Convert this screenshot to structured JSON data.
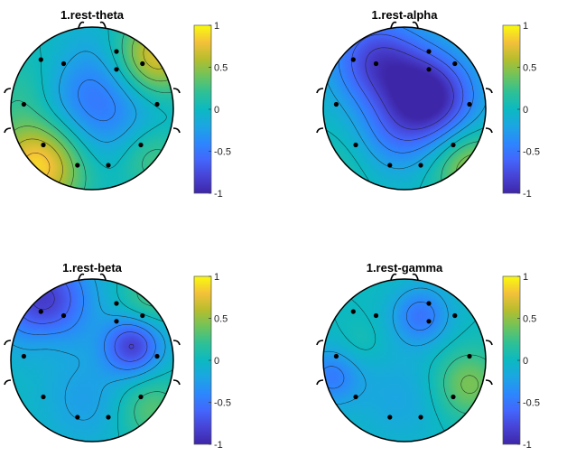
{
  "colormap": [
    "#3e26a8",
    "#4743d5",
    "#4366fc",
    "#2c87fd",
    "#1ba6e2",
    "#0cb9c1",
    "#2ec097",
    "#6fc35c",
    "#b7bd2e",
    "#f4c13a",
    "#f9fb0e"
  ],
  "colorbar_ticks": [
    "1",
    "0.5",
    "0",
    "-0.5",
    "-1"
  ],
  "chart_data": [
    {
      "type": "heatmap",
      "title": "1.rest-theta",
      "clim": [
        -1,
        1
      ],
      "sources": [
        {
          "x": 0.08,
          "y": 0.1,
          "v": -0.55,
          "s": 0.55
        },
        {
          "x": 0.75,
          "y": 0.62,
          "v": 0.85,
          "s": 0.35
        },
        {
          "x": -0.65,
          "y": -0.68,
          "v": 0.95,
          "s": 0.4
        },
        {
          "x": 0.72,
          "y": -0.6,
          "v": 0.35,
          "s": 0.3
        },
        {
          "x": -0.85,
          "y": 0.2,
          "v": 0.2,
          "s": 0.3
        },
        {
          "x": -0.5,
          "y": 0.65,
          "v": 0.1,
          "s": 0.3
        }
      ]
    },
    {
      "type": "heatmap",
      "title": "1.rest-alpha",
      "clim": [
        -1,
        1
      ],
      "sources": [
        {
          "x": 0.3,
          "y": 0.12,
          "v": -1.05,
          "s": 0.4
        },
        {
          "x": -0.35,
          "y": 0.6,
          "v": -0.75,
          "s": 0.4
        },
        {
          "x": 0.8,
          "y": -0.7,
          "v": 0.55,
          "s": 0.32
        },
        {
          "x": -0.7,
          "y": -0.7,
          "v": 0.15,
          "s": 0.35
        },
        {
          "x": -0.2,
          "y": -0.4,
          "v": -0.3,
          "s": 0.35
        }
      ]
    },
    {
      "type": "heatmap",
      "title": "1.rest-beta",
      "clim": [
        -1,
        1
      ],
      "sources": [
        {
          "x": 0.5,
          "y": 0.18,
          "v": -0.8,
          "s": 0.25
        },
        {
          "x": -0.55,
          "y": 0.22,
          "v": 0.1,
          "s": 0.2
        },
        {
          "x": -0.6,
          "y": 0.75,
          "v": -0.85,
          "s": 0.4
        },
        {
          "x": 0.7,
          "y": 0.75,
          "v": 0.3,
          "s": 0.25
        },
        {
          "x": 0.7,
          "y": -0.6,
          "v": 0.35,
          "s": 0.3
        },
        {
          "x": -0.05,
          "y": -0.5,
          "v": -0.25,
          "s": 0.4
        }
      ]
    },
    {
      "type": "heatmap",
      "title": "1.rest-gamma",
      "clim": [
        -1,
        1
      ],
      "sources": [
        {
          "x": -0.55,
          "y": 0.2,
          "v": 0.1,
          "s": 0.2
        },
        {
          "x": 0.2,
          "y": 0.55,
          "v": -0.5,
          "s": 0.25
        },
        {
          "x": 0.78,
          "y": -0.3,
          "v": 0.45,
          "s": 0.3
        },
        {
          "x": -0.9,
          "y": -0.2,
          "v": -0.45,
          "s": 0.25
        },
        {
          "x": -0.05,
          "y": -0.45,
          "v": -0.2,
          "s": 0.4
        }
      ]
    }
  ]
}
